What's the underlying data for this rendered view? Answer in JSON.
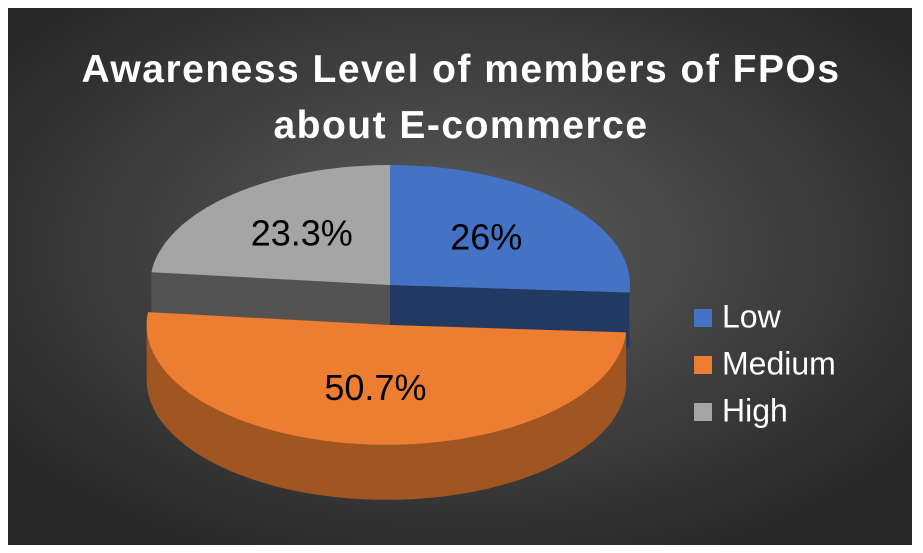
{
  "chart_data": {
    "type": "pie",
    "title": "Awareness Level of members of FPOs about E-commerce",
    "categories": [
      "Low",
      "Medium",
      "High"
    ],
    "values": [
      26,
      50.7,
      23.3
    ],
    "value_labels": [
      "26%",
      "50.7%",
      "23.3%"
    ],
    "colors": [
      "#4472c4",
      "#ed7d31",
      "#a5a5a5"
    ],
    "legend": "right",
    "exploded": [
      1
    ]
  }
}
